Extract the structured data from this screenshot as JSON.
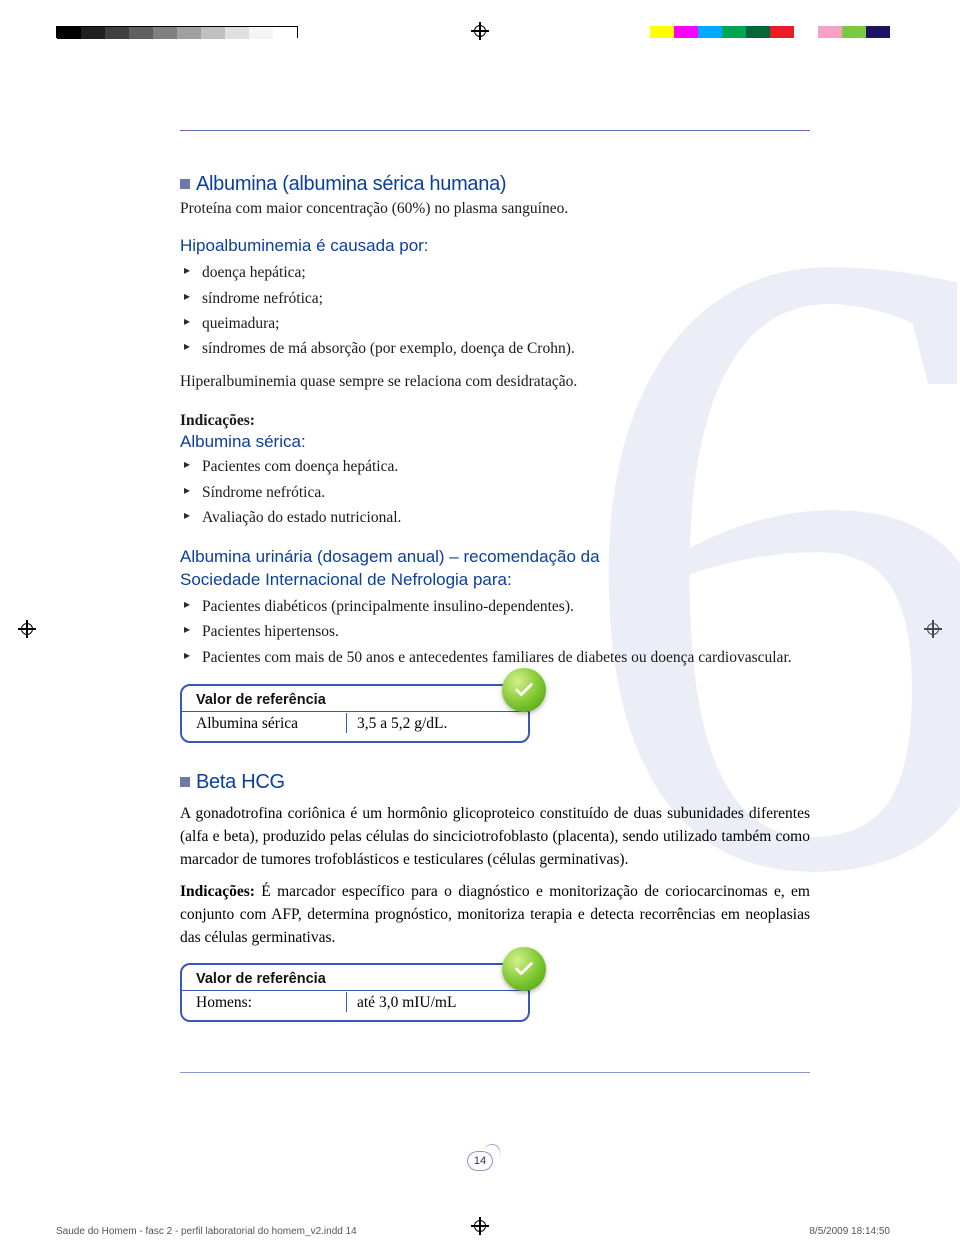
{
  "colorbars": {
    "left": [
      "#000000",
      "#202020",
      "#404040",
      "#606060",
      "#808080",
      "#a0a0a0",
      "#c0c0c0",
      "#e0e0e0",
      "#f4f4f4",
      "#ffffff"
    ],
    "right": [
      "#ffff00",
      "#ff00ff",
      "#00aaff",
      "#00a651",
      "#006837",
      "#ed1c24",
      "#ffffff",
      "#f7a1c4",
      "#7ac943",
      "#1b1464"
    ]
  },
  "section1": {
    "title": "Albumina (albumina sérica humana)",
    "intro": "Proteína com maior concentração (60%) no plasma sanguíneo.",
    "causes_title": "Hipoalbuminemia é causada por:",
    "causes": [
      "doença hepática;",
      "síndrome nefrótica;",
      "queimadura;",
      "síndromes de má absorção (por exemplo, doença de Crohn)."
    ],
    "hyper": "Hiperalbuminemia quase sempre se relaciona com desidratação.",
    "indic_label": "Indicações:",
    "serica_title": "Albumina sérica:",
    "serica_items": [
      "Pacientes com doença hepática.",
      "Síndrome nefrótica.",
      "Avaliação do estado nutricional."
    ],
    "urinaria_title1": "Albumina urinária (dosagem anual) – recomendação da",
    "urinaria_title2": "Sociedade Internacional de Nefrologia para:",
    "urinaria_items": [
      "Pacientes diabéticos (principalmente insulino-dependentes).",
      "Pacientes hipertensos.",
      "Pacientes com mais de 50 anos e antecedentes familiares de diabetes ou doença cardiovascular."
    ],
    "ref_title": "Valor de referência",
    "ref_label": "Albumina sérica",
    "ref_value": "3,5 a 5,2 g/dL."
  },
  "section2": {
    "title": "Beta HCG",
    "para": "A gonadotrofina coriônica é um hormônio glicoproteico constituído de duas subunidades diferentes (alfa e beta), produzido pelas células do sinciciotrofoblasto (placenta), sendo utilizado também como marcador de tumores trofoblásticos e testiculares (células germinativas).",
    "indic_label": "Indicações:",
    "indic_text": " É marcador específico para o diagnóstico e monitorização de coriocarcinomas e, em conjunto com AFP, determina prognóstico, monitoriza terapia e detecta recorrências em neoplasias das células germinativas.",
    "ref_title": "Valor de referência",
    "ref_label": "Homens:",
    "ref_value": "até 3,0 mIU/mL"
  },
  "page_number": "14",
  "slug_left": "Saude do Homem - fasc 2 - perfil laboratorial do homem_v2.indd   14",
  "slug_right": "8/5/2009   18:14:50"
}
